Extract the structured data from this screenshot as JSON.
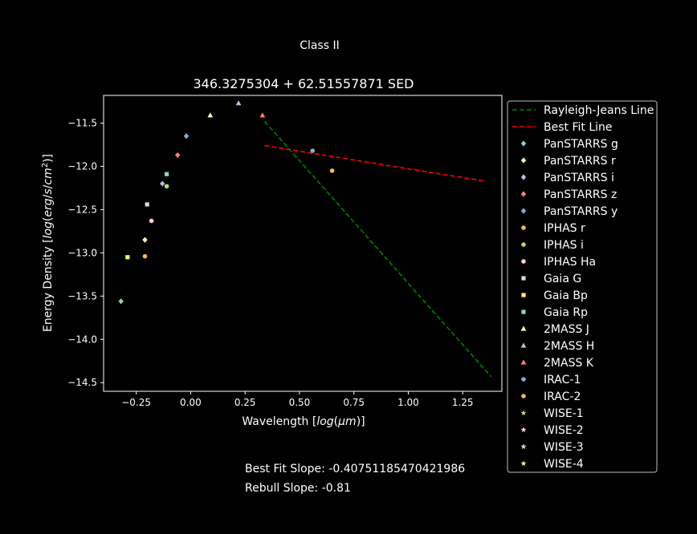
{
  "figure": {
    "suptitle": "Class II",
    "footer": {
      "best_fit_slope": "Best Fit Slope: -0.40751185470421986",
      "rebull_slope": "Rebull Slope: -0.81"
    }
  },
  "chart_data": {
    "type": "scatter",
    "title": "346.3275304 + 62.51557871 SED",
    "xlabel": "Wavelength [log(μm)]",
    "ylabel": "Energy Density [log(erg/s/cm²)]",
    "xlim": [
      -0.4,
      1.43
    ],
    "ylim": [
      -14.6,
      -11.18
    ],
    "xticks": [
      -0.25,
      0.0,
      0.25,
      0.5,
      0.75,
      1.0,
      1.25
    ],
    "xtick_labels": [
      "−0.25",
      "0.00",
      "0.25",
      "0.50",
      "0.75",
      "1.00",
      "1.25"
    ],
    "yticks": [
      -11.5,
      -12.0,
      -12.5,
      -13.0,
      -13.5,
      -14.0,
      -14.5
    ],
    "ytick_labels": [
      "−11.5",
      "−12.0",
      "−12.5",
      "−13.0",
      "−13.5",
      "−14.0",
      "−14.5"
    ],
    "grid": false,
    "legend_position": "outside-right",
    "lines": [
      {
        "name": "Rayleigh-Jeans Line",
        "color": "#008000",
        "dash": true,
        "x": [
          0.34,
          1.38
        ],
        "y": [
          -11.48,
          -14.43
        ]
      },
      {
        "name": "Best Fit Line",
        "color": "#ff0000",
        "dash": true,
        "x": [
          0.34,
          1.35
        ],
        "y": [
          -11.76,
          -12.17
        ]
      }
    ],
    "series": [
      {
        "name": "PanSTARRS g",
        "marker": "diamond",
        "color": "#8dd3c7",
        "x": [
          -0.32
        ],
        "y": [
          -13.56
        ]
      },
      {
        "name": "PanSTARRS r",
        "marker": "diamond",
        "color": "#ffffb3",
        "x": [
          -0.21
        ],
        "y": [
          -12.85
        ]
      },
      {
        "name": "PanSTARRS i",
        "marker": "diamond",
        "color": "#bebada",
        "x": [
          -0.13
        ],
        "y": [
          -12.2
        ]
      },
      {
        "name": "PanSTARRS z",
        "marker": "diamond",
        "color": "#fb8072",
        "x": [
          -0.06
        ],
        "y": [
          -11.87
        ]
      },
      {
        "name": "PanSTARRS y",
        "marker": "diamond",
        "color": "#80b1d3",
        "x": [
          -0.02
        ],
        "y": [
          -11.65
        ]
      },
      {
        "name": "IPHAS r",
        "marker": "circle",
        "color": "#fdb462",
        "x": [
          -0.21
        ],
        "y": [
          -13.04
        ]
      },
      {
        "name": "IPHAS i",
        "marker": "circle",
        "color": "#b3de69",
        "x": [
          -0.11
        ],
        "y": [
          -12.23
        ]
      },
      {
        "name": "IPHAS Ha",
        "marker": "circle",
        "color": "#fccde5",
        "x": [
          -0.18
        ],
        "y": [
          -12.63
        ]
      },
      {
        "name": "Gaia G",
        "marker": "square",
        "color": "#d9d9d9",
        "x": [
          -0.2
        ],
        "y": [
          -12.44
        ]
      },
      {
        "name": "Gaia Bp",
        "marker": "square",
        "color": "#ffed6f",
        "x": [
          -0.29
        ],
        "y": [
          -13.05
        ]
      },
      {
        "name": "Gaia Rp",
        "marker": "square",
        "color": "#8dd3c7",
        "x": [
          -0.11
        ],
        "y": [
          -12.09
        ]
      },
      {
        "name": "2MASS J",
        "marker": "triangle",
        "color": "#ffffb3",
        "x": [
          0.09
        ],
        "y": [
          -11.41
        ]
      },
      {
        "name": "2MASS H",
        "marker": "triangle",
        "color": "#bebada",
        "x": [
          0.22
        ],
        "y": [
          -11.27
        ]
      },
      {
        "name": "2MASS K",
        "marker": "triangle",
        "color": "#fb8072",
        "x": [
          0.33
        ],
        "y": [
          -11.41
        ]
      },
      {
        "name": "IRAC-1",
        "marker": "circle",
        "color": "#80b1d3",
        "x": [
          0.56
        ],
        "y": [
          -11.82
        ]
      },
      {
        "name": "IRAC-2",
        "marker": "circle",
        "color": "#fdb462",
        "x": [
          0.65
        ],
        "y": [
          -12.05
        ]
      },
      {
        "name": "WISE-1",
        "marker": "star",
        "color": "#b3de69",
        "x": [],
        "y": []
      },
      {
        "name": "WISE-2",
        "marker": "star",
        "color": "#fccde5",
        "x": [],
        "y": []
      },
      {
        "name": "WISE-3",
        "marker": "star",
        "color": "#d9d9d9",
        "x": [],
        "y": []
      },
      {
        "name": "WISE-4",
        "marker": "star",
        "color": "#ffed6f",
        "x": [],
        "y": []
      }
    ]
  }
}
